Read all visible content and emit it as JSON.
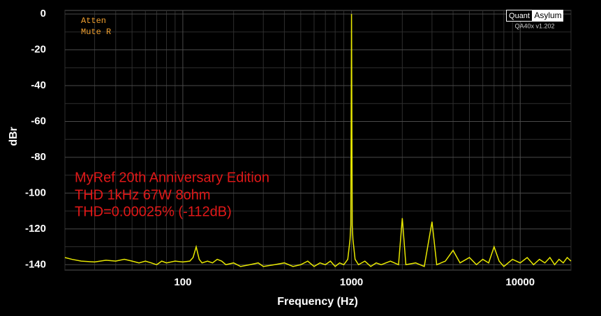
{
  "chart_data": {
    "type": "line",
    "x_label": "Frequency (Hz)",
    "y_label": "dBr",
    "annotations": [
      "MyRef 20th Anniversary Edition",
      "THD 1kHz 67W 8ohm",
      "THD=0.00025% (-112dB)"
    ],
    "status": [
      "Atten",
      "Mute R"
    ],
    "logo": {
      "left": "Quant",
      "right": "Asylum",
      "version": "QA40x v1.202"
    },
    "log_x": true,
    "grid": true,
    "color": "#e8e800",
    "xlim": [
      20,
      20000
    ],
    "xticks": [
      100,
      1000,
      10000
    ],
    "x_minor_ticks": [
      20,
      30,
      40,
      50,
      60,
      70,
      80,
      90,
      200,
      300,
      400,
      500,
      600,
      700,
      800,
      900,
      2000,
      3000,
      4000,
      5000,
      6000,
      7000,
      8000,
      9000,
      20000
    ],
    "ylim": [
      -143,
      2
    ],
    "yticks": [
      0,
      -20,
      -40,
      -60,
      -80,
      -100,
      -120,
      -140
    ],
    "y_minor_ticks": [
      -10,
      -30,
      -50,
      -70,
      -90,
      -110,
      -130
    ],
    "x": [
      20,
      22,
      25,
      30,
      35,
      40,
      45,
      50,
      55,
      60,
      65,
      70,
      75,
      80,
      90,
      100,
      110,
      115,
      120,
      125,
      130,
      140,
      150,
      160,
      170,
      180,
      200,
      220,
      250,
      280,
      300,
      350,
      400,
      450,
      500,
      550,
      600,
      650,
      700,
      750,
      800,
      850,
      900,
      950,
      980,
      990,
      995,
      1000,
      1005,
      1010,
      1020,
      1050,
      1100,
      1200,
      1300,
      1400,
      1500,
      1700,
      1900,
      2000,
      2100,
      2400,
      2700,
      3000,
      3200,
      3600,
      4000,
      4400,
      5000,
      5500,
      6000,
      6500,
      7000,
      7500,
      8000,
      9000,
      10000,
      11000,
      12000,
      13000,
      14000,
      15000,
      16000,
      17000,
      18000,
      19000,
      20000
    ],
    "values": [
      -136,
      -137,
      -138,
      -138.5,
      -137.5,
      -138,
      -137,
      -138,
      -139,
      -138,
      -139,
      -140,
      -138,
      -139,
      -138,
      -138.5,
      -138,
      -136,
      -130,
      -137,
      -139,
      -138,
      -139,
      -137,
      -138,
      -140,
      -139,
      -141,
      -140,
      -139,
      -141,
      -140,
      -139,
      -141,
      -140,
      -138,
      -141,
      -139,
      -140,
      -138,
      -141,
      -139,
      -140,
      -137,
      -126,
      -118,
      -60,
      0,
      -60,
      -118,
      -126,
      -137,
      -140,
      -138,
      -141,
      -139,
      -140,
      -138,
      -140,
      -114,
      -140,
      -139,
      -141,
      -116,
      -140,
      -138,
      -132,
      -139,
      -136,
      -140,
      -137,
      -139,
      -130,
      -138,
      -141,
      -137,
      -139,
      -136,
      -140,
      -137,
      -139,
      -136,
      -140,
      -137,
      -139,
      -136,
      -138
    ]
  }
}
